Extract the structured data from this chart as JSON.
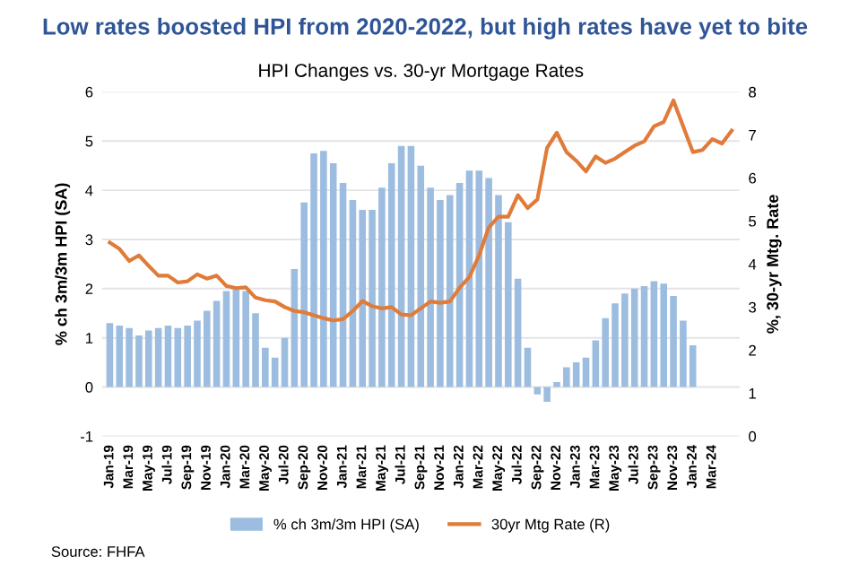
{
  "chart_data": {
    "type": "bar",
    "title": "Low rates boosted HPI from 2020-2022, but high rates have yet to bite",
    "subtitle": "HPI Changes vs. 30-yr Mortgage Rates",
    "ylabel": "% ch 3m/3m HPI (SA)",
    "y2label": "%, 30-yr Mtg. Rate",
    "annotations": [
      "Source: FHFA"
    ],
    "categories": [
      "Jan-19",
      null,
      "Mar-19",
      null,
      "May-19",
      null,
      "Jul-19",
      null,
      "Sep-19",
      null,
      "Nov-19",
      null,
      "Jan-20",
      null,
      "Mar-20",
      null,
      "May-20",
      null,
      "Jul-20",
      null,
      "Sep-20",
      null,
      "Nov-20",
      null,
      "Jan-21",
      null,
      "Mar-21",
      null,
      "May-21",
      null,
      "Jul-21",
      null,
      "Sep-21",
      null,
      "Nov-21",
      null,
      "Jan-22",
      null,
      "Mar-22",
      null,
      "May-22",
      null,
      "Jul-22",
      null,
      "Sep-22",
      null,
      "Nov-22",
      null,
      "Jan-23",
      null,
      "Mar-23",
      null,
      "May-23",
      null,
      "Jul-23",
      null,
      "Sep-23",
      null,
      "Nov-23",
      null,
      "Jan-24",
      null,
      "Mar-24",
      null,
      null
    ],
    "series": [
      {
        "name": "% ch 3m/3m HPI (SA)",
        "color": "#9dbde0",
        "values": [
          1.3,
          1.25,
          1.2,
          1.05,
          1.15,
          1.2,
          1.25,
          1.2,
          1.25,
          1.35,
          1.55,
          1.75,
          1.95,
          2.0,
          1.95,
          1.5,
          0.8,
          0.6,
          1.0,
          2.4,
          3.75,
          4.75,
          4.8,
          4.55,
          4.15,
          3.8,
          3.6,
          3.6,
          4.05,
          4.55,
          4.9,
          4.9,
          4.5,
          4.05,
          3.8,
          3.9,
          4.15,
          4.4,
          4.4,
          4.25,
          3.9,
          3.35,
          2.2,
          0.8,
          -0.15,
          -0.3,
          0.1,
          0.4,
          0.5,
          0.6,
          0.95,
          1.4,
          1.7,
          1.9,
          2.0,
          2.05,
          2.15,
          2.1,
          1.85,
          1.35,
          0.85,
          null,
          null,
          null,
          null
        ]
      },
      {
        "name": "30yr Mtg Rate (R)",
        "type": "line",
        "axis": "y2",
        "color": "#e07b39",
        "values": [
          4.5,
          4.35,
          4.07,
          4.2,
          3.96,
          3.73,
          3.73,
          3.57,
          3.6,
          3.76,
          3.66,
          3.73,
          3.49,
          3.44,
          3.46,
          3.22,
          3.16,
          3.13,
          3.0,
          2.91,
          2.88,
          2.81,
          2.74,
          2.69,
          2.72,
          2.91,
          3.14,
          3.02,
          2.97,
          3.0,
          2.83,
          2.81,
          2.97,
          3.13,
          3.1,
          3.13,
          3.45,
          3.7,
          4.2,
          4.85,
          5.1,
          5.1,
          5.6,
          5.3,
          5.5,
          6.7,
          7.05,
          6.6,
          6.4,
          6.15,
          6.5,
          6.35,
          6.45,
          6.6,
          6.75,
          6.85,
          7.2,
          7.3,
          7.8,
          7.2,
          6.6,
          6.65,
          6.9,
          6.8,
          7.1
        ]
      }
    ],
    "ylim": [
      -1,
      6
    ],
    "yticks": [
      -1,
      0,
      1,
      2,
      3,
      4,
      5,
      6
    ],
    "y2lim": [
      0,
      8
    ],
    "y2ticks": [
      0,
      1,
      2,
      3,
      4,
      5,
      6,
      7,
      8
    ],
    "grid": "y",
    "legend": "bottom",
    "marker": "none",
    "line_style": "solid"
  }
}
